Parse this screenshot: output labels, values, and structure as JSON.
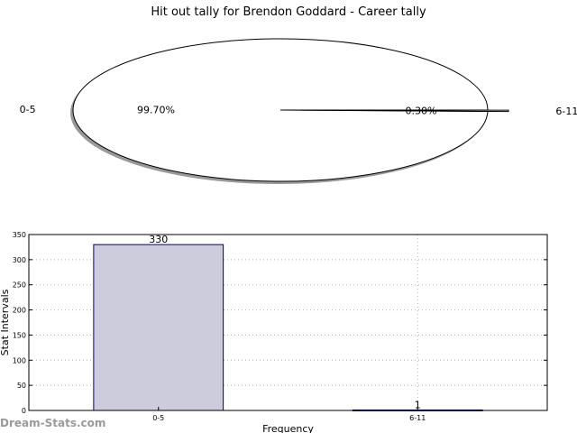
{
  "title": "Hit out tally for Brendon Goddard - Career tally",
  "watermark": "Dream-Stats.com",
  "chart_data": [
    {
      "type": "pie",
      "labels": [
        "0-5",
        "6-11"
      ],
      "values": [
        99.7,
        0.3
      ],
      "pct_labels": [
        "99.70%",
        "0.30%"
      ],
      "colors": [
        "#ffffff",
        "#ffffff"
      ],
      "shadow": true,
      "exploded": true
    },
    {
      "type": "bar",
      "categories": [
        "0-5",
        "6-11"
      ],
      "values": [
        330,
        1
      ],
      "bar_labels": [
        "330",
        "1"
      ],
      "xlabel": "Frequency",
      "ylabel": "Stat Intervals",
      "ylim": [
        0,
        350
      ],
      "yticks": [
        0,
        50,
        100,
        150,
        200,
        250,
        300,
        350
      ],
      "grid": true,
      "bar_color": "#ccccdd",
      "bar_edge": "#000080"
    }
  ]
}
